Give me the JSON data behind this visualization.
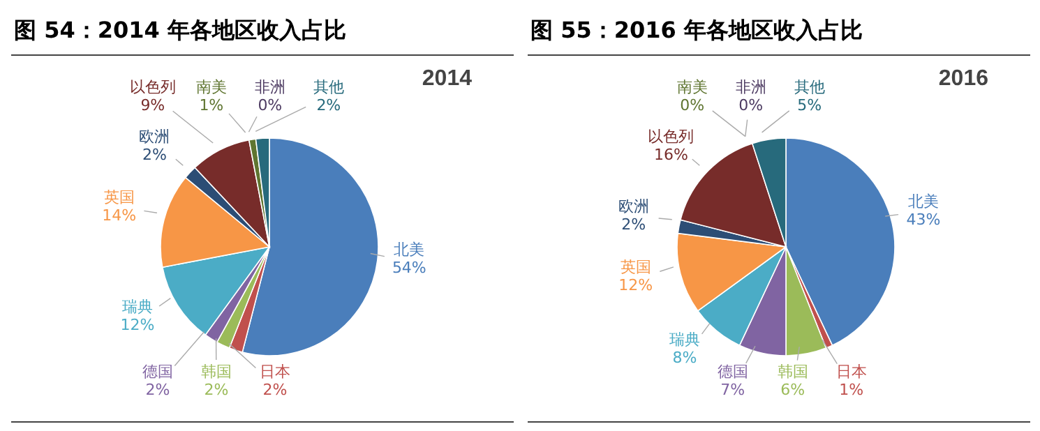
{
  "chart_data": [
    {
      "type": "pie",
      "title": "图 54：2014 年各地区收入占比",
      "subtitle": "2014",
      "legend": false,
      "categories": [
        "北美",
        "日本",
        "韩国",
        "德国",
        "瑞典",
        "英国",
        "欧洲",
        "以色列",
        "南美",
        "非洲",
        "其他"
      ],
      "values": [
        54,
        2,
        2,
        2,
        12,
        14,
        2,
        9,
        1,
        0,
        2
      ],
      "value_labels": [
        "54%",
        "2%",
        "2%",
        "2%",
        "12%",
        "14%",
        "2%",
        "9%",
        "1%",
        "0%",
        "2%"
      ],
      "colors": [
        "#4a7ebb",
        "#c0504d",
        "#9bbb59",
        "#8064a2",
        "#4bacc6",
        "#f79646",
        "#2c4d75",
        "#772c2a",
        "#5f7530",
        "#4d3b62",
        "#276a7c"
      ]
    },
    {
      "type": "pie",
      "title": "图 55：2016 年各地区收入占比",
      "subtitle": "2016",
      "legend": false,
      "categories": [
        "北美",
        "日本",
        "韩国",
        "德国",
        "瑞典",
        "英国",
        "欧洲",
        "以色列",
        "南美",
        "非洲",
        "其他"
      ],
      "values": [
        43,
        1,
        6,
        7,
        8,
        12,
        2,
        16,
        0,
        0,
        5
      ],
      "value_labels": [
        "43%",
        "1%",
        "6%",
        "7%",
        "8%",
        "12%",
        "2%",
        "16%",
        "0%",
        "0%",
        "5%"
      ],
      "colors": [
        "#4a7ebb",
        "#c0504d",
        "#9bbb59",
        "#8064a2",
        "#4bacc6",
        "#f79646",
        "#2c4d75",
        "#772c2a",
        "#5f7530",
        "#4d3b62",
        "#276a7c"
      ]
    }
  ]
}
